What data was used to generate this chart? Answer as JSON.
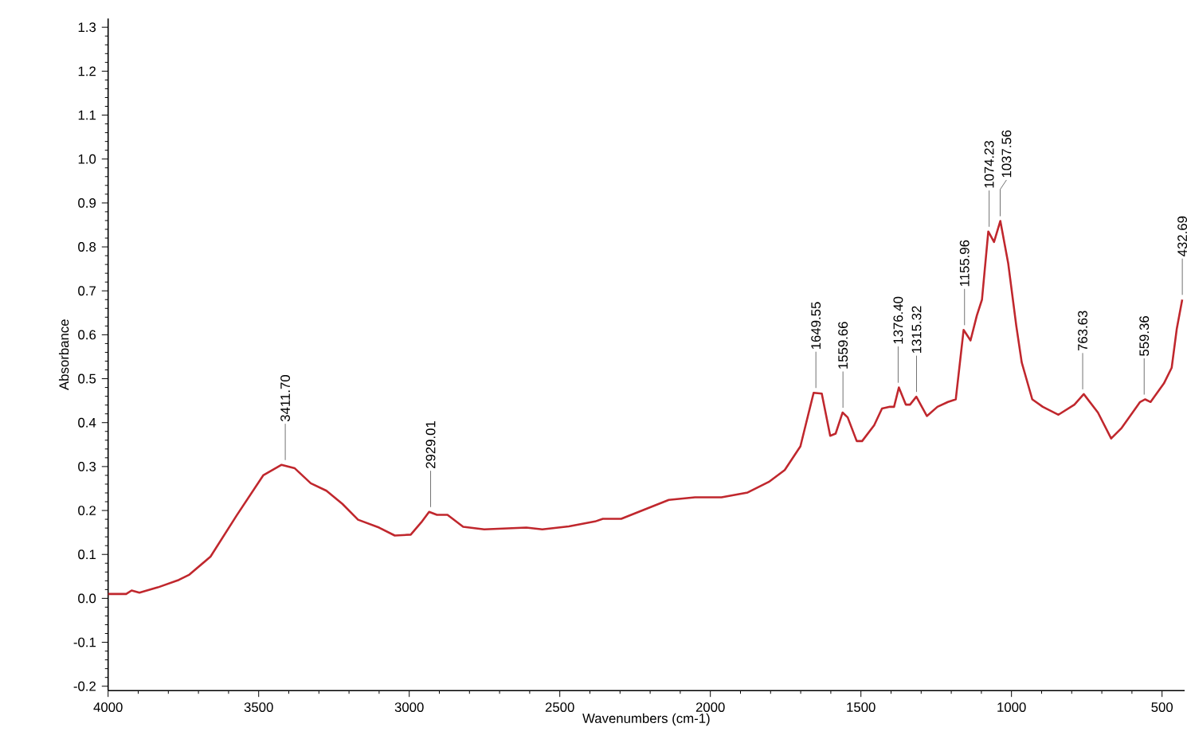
{
  "chart_data": {
    "type": "line",
    "xlabel": "Wavenumbers (cm-1)",
    "ylabel": "Absorbance",
    "xlim": [
      4000,
      425
    ],
    "ylim": [
      -0.21,
      1.32
    ],
    "xticks": [
      4000,
      3500,
      3000,
      2500,
      2000,
      1500,
      1000,
      500
    ],
    "yticks": [
      {
        "value": -0.2,
        "label": "-0.2"
      },
      {
        "value": -0.1,
        "label": "-0.1"
      },
      {
        "value": 0,
        "label": "0.0"
      },
      {
        "value": 0.1,
        "label": "0.1"
      },
      {
        "value": 0.2,
        "label": "0.2"
      },
      {
        "value": 0.3,
        "label": "0.3"
      },
      {
        "value": 0.4,
        "label": "0.4"
      },
      {
        "value": 0.5,
        "label": "0.5"
      },
      {
        "value": 0.6,
        "label": "0.6"
      },
      {
        "value": 0.7,
        "label": "0.7"
      },
      {
        "value": 0.8,
        "label": "0.8"
      },
      {
        "value": 0.9,
        "label": "0.9"
      },
      {
        "value": 1.0,
        "label": "1.0"
      },
      {
        "value": 1.1,
        "label": "1.1"
      },
      {
        "value": 1.2,
        "label": "1.2"
      },
      {
        "value": 1.3,
        "label": "1.3"
      }
    ],
    "grid": false,
    "marker": "none",
    "line_style": "solid",
    "series": [
      {
        "color": "#c0272d",
        "x": [
          4000,
          3940,
          3922,
          3896,
          3835,
          3765,
          3730,
          3660,
          3572,
          3485,
          3424,
          3380,
          3327,
          3275,
          3222,
          3170,
          3100,
          3048,
          2995,
          2960,
          2934,
          2908,
          2873,
          2821,
          2751,
          2611,
          2558,
          2470,
          2383,
          2357,
          2296,
          2208,
          2138,
          2051,
          1963,
          1876,
          1806,
          1753,
          1701,
          1657,
          1630,
          1602,
          1584,
          1561,
          1544,
          1514,
          1496,
          1456,
          1430,
          1404,
          1390,
          1374,
          1351,
          1337,
          1316,
          1281,
          1246,
          1211,
          1185,
          1159,
          1136,
          1115,
          1098,
          1077,
          1058,
          1037,
          1011,
          984,
          966,
          931,
          896,
          844,
          791,
          760,
          713,
          669,
          634,
          573,
          556,
          538,
          494,
          468,
          451,
          433
        ],
        "values": [
          0.01,
          0.01,
          0.018,
          0.013,
          0.025,
          0.042,
          0.054,
          0.095,
          0.19,
          0.28,
          0.304,
          0.296,
          0.262,
          0.245,
          0.215,
          0.179,
          0.161,
          0.143,
          0.145,
          0.173,
          0.197,
          0.19,
          0.19,
          0.163,
          0.157,
          0.161,
          0.157,
          0.164,
          0.175,
          0.181,
          0.181,
          0.205,
          0.224,
          0.23,
          0.23,
          0.241,
          0.265,
          0.292,
          0.346,
          0.468,
          0.466,
          0.37,
          0.375,
          0.423,
          0.412,
          0.358,
          0.358,
          0.394,
          0.432,
          0.436,
          0.436,
          0.48,
          0.441,
          0.441,
          0.459,
          0.415,
          0.436,
          0.447,
          0.453,
          0.611,
          0.587,
          0.644,
          0.68,
          0.835,
          0.811,
          0.859,
          0.763,
          0.62,
          0.537,
          0.453,
          0.436,
          0.418,
          0.441,
          0.465,
          0.423,
          0.364,
          0.388,
          0.447,
          0.453,
          0.447,
          0.489,
          0.525,
          0.614,
          0.68
        ]
      }
    ],
    "annotations": [
      {
        "text": "3411.70",
        "x": 3411.7,
        "y": 0.304
      },
      {
        "text": "2929.01",
        "x": 2929.01,
        "y": 0.197
      },
      {
        "text": "1649.55",
        "x": 1649.55,
        "y": 0.468
      },
      {
        "text": "1559.66",
        "x": 1559.66,
        "y": 0.423
      },
      {
        "text": "1376.40",
        "x": 1376.4,
        "y": 0.48
      },
      {
        "text": "1315.32",
        "x": 1315.32,
        "y": 0.459
      },
      {
        "text": "1155.96",
        "x": 1155.96,
        "y": 0.611
      },
      {
        "text": "1074.23",
        "x": 1074.23,
        "y": 0.835
      },
      {
        "text": "1037.56",
        "x": 1037.56,
        "y": 0.859
      },
      {
        "text": "763.63",
        "x": 763.63,
        "y": 0.465
      },
      {
        "text": "559.36",
        "x": 559.36,
        "y": 0.453
      },
      {
        "text": "432.69",
        "x": 432.69,
        "y": 0.68
      }
    ]
  }
}
